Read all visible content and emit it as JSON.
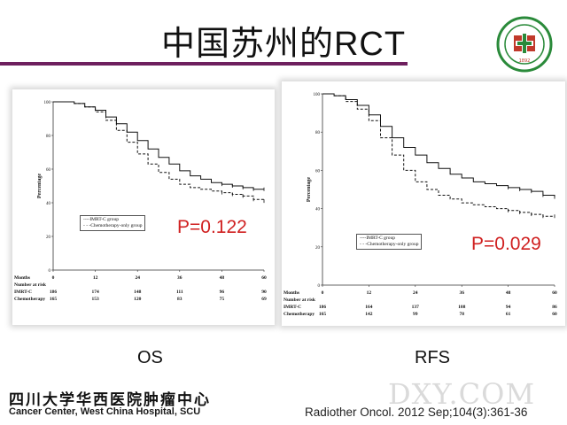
{
  "slide": {
    "title": "中国苏州的RCT",
    "footer_cn": "四川大学华西医院肿瘤中心",
    "footer_en": "Cancer Center, West China Hospital, SCU",
    "citation": "Radiother Oncol. 2012 Sep;104(3):361-36",
    "watermark": "DXY.COM",
    "accent_color": "#6e1f5e",
    "pvalue_color": "#d02020"
  },
  "chart_data": [
    {
      "type": "line",
      "caption": "OS",
      "ylabel": "Percentage",
      "ylim": [
        0,
        100
      ],
      "xlim": [
        0,
        60
      ],
      "x_ticks": [
        0,
        12,
        24,
        36,
        48,
        60
      ],
      "y_ticks": [
        0,
        20,
        40,
        60,
        80,
        100
      ],
      "pvalue": "P=0.122",
      "legend": [
        "----IMRT-C group",
        "- - -Chemotherapy-only group"
      ],
      "series": [
        {
          "name": "IMRT-C group",
          "style": "solid",
          "x": [
            0,
            3,
            6,
            9,
            12,
            15,
            18,
            21,
            24,
            27,
            30,
            33,
            36,
            39,
            42,
            45,
            48,
            51,
            54,
            57,
            60
          ],
          "y": [
            100,
            100,
            99,
            97,
            95,
            91,
            87,
            82,
            77,
            72,
            67,
            63,
            59,
            56,
            54,
            52,
            51,
            50,
            49,
            48,
            48
          ]
        },
        {
          "name": "Chemotherapy-only group",
          "style": "dashed",
          "x": [
            0,
            3,
            6,
            9,
            12,
            15,
            18,
            21,
            24,
            27,
            30,
            33,
            36,
            39,
            42,
            45,
            48,
            51,
            54,
            57,
            60
          ],
          "y": [
            100,
            100,
            99,
            97,
            94,
            89,
            83,
            76,
            69,
            63,
            58,
            54,
            51,
            49,
            48,
            47,
            46,
            45,
            44,
            42,
            41
          ]
        }
      ],
      "risk_table": {
        "header": "Months",
        "subheader": "Number at risk",
        "months": [
          "0",
          "12",
          "24",
          "36",
          "48",
          "60"
        ],
        "rows": [
          {
            "label": "IMRT-C",
            "values": [
              "186",
              "174",
              "148",
              "111",
              "96",
              "90"
            ]
          },
          {
            "label": "Chemotherapy",
            "values": [
              "165",
              "153",
              "120",
              "83",
              "75",
              "69"
            ]
          }
        ]
      }
    },
    {
      "type": "line",
      "caption": "RFS",
      "ylabel": "Percentage",
      "ylim": [
        0,
        100
      ],
      "xlim": [
        0,
        60
      ],
      "x_ticks": [
        0,
        12,
        24,
        36,
        48,
        60
      ],
      "y_ticks": [
        0,
        20,
        40,
        60,
        80,
        100
      ],
      "pvalue": "P=0.029",
      "legend": [
        "----IMRT-C group",
        "- - -Chemotherapy-only group"
      ],
      "series": [
        {
          "name": "IMRT-C group",
          "style": "solid",
          "x": [
            0,
            3,
            6,
            9,
            12,
            15,
            18,
            21,
            24,
            27,
            30,
            33,
            36,
            39,
            42,
            45,
            48,
            51,
            54,
            57,
            60
          ],
          "y": [
            100,
            99,
            97,
            94,
            89,
            83,
            77,
            72,
            68,
            64,
            61,
            58,
            56,
            54,
            53,
            52,
            51,
            50,
            49,
            47,
            46
          ]
        },
        {
          "name": "Chemotherapy-only group",
          "style": "dashed",
          "x": [
            0,
            3,
            6,
            9,
            12,
            15,
            18,
            21,
            24,
            27,
            30,
            33,
            36,
            39,
            42,
            45,
            48,
            51,
            54,
            57,
            60
          ],
          "y": [
            100,
            99,
            96,
            92,
            86,
            77,
            68,
            60,
            54,
            50,
            47,
            45,
            43,
            42,
            41,
            40,
            39,
            38,
            37,
            36,
            36
          ]
        }
      ],
      "risk_table": {
        "header": "Months",
        "subheader": "Number at risk",
        "months": [
          "0",
          "12",
          "24",
          "36",
          "48",
          "60"
        ],
        "rows": [
          {
            "label": "IMRT-C",
            "values": [
              "186",
              "164",
              "137",
              "108",
              "94",
              "86"
            ]
          },
          {
            "label": "Chemotherapy",
            "values": [
              "165",
              "142",
              "99",
              "78",
              "61",
              "60"
            ]
          }
        ]
      }
    }
  ]
}
